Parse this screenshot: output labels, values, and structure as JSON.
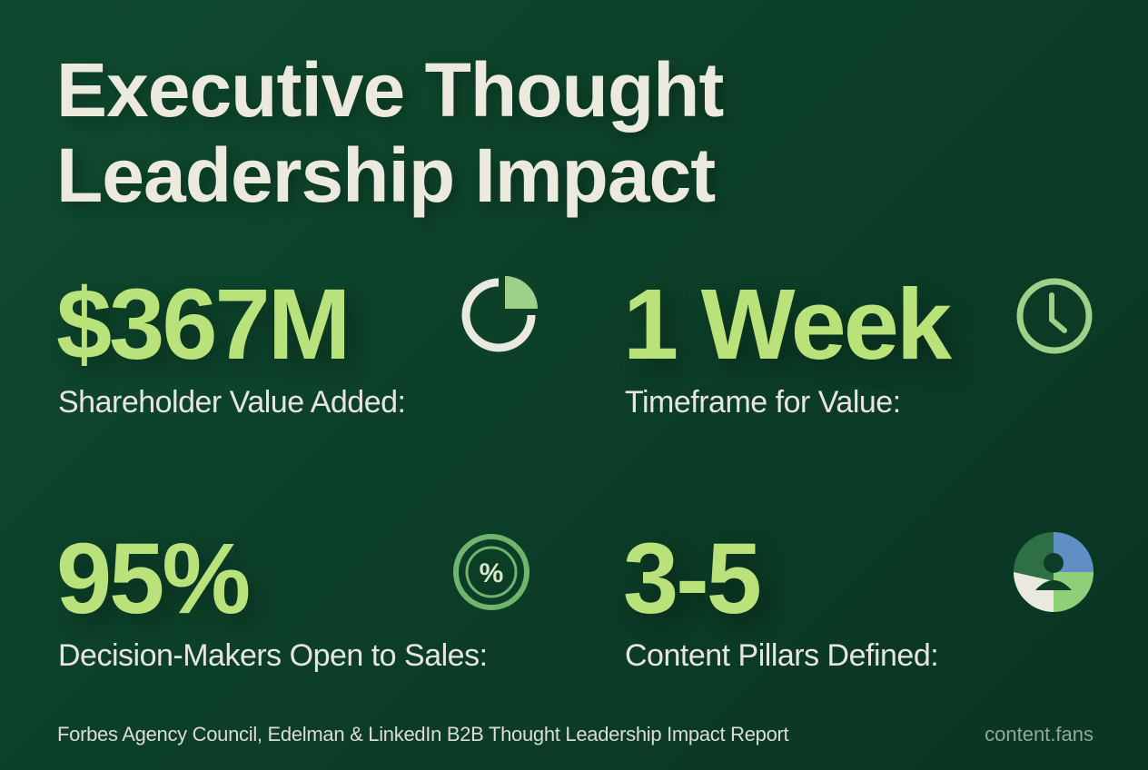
{
  "title": [
    "Executive Thought",
    "Leadership Impact"
  ],
  "stats": [
    {
      "value": "$367M",
      "label": "Shareholder Value Added:"
    },
    {
      "value": "1 Week",
      "label": "Timeframe for Value:"
    },
    {
      "value": "95%",
      "label": "Decision-Makers Open to Sales:"
    },
    {
      "value": "3-5",
      "label": "Content Pillars Defined:"
    }
  ],
  "footer": {
    "source": "Forbes Agency Council, Edelman & LinkedIn B2B Thought Leadership Impact Report",
    "brand": "content.fans"
  }
}
